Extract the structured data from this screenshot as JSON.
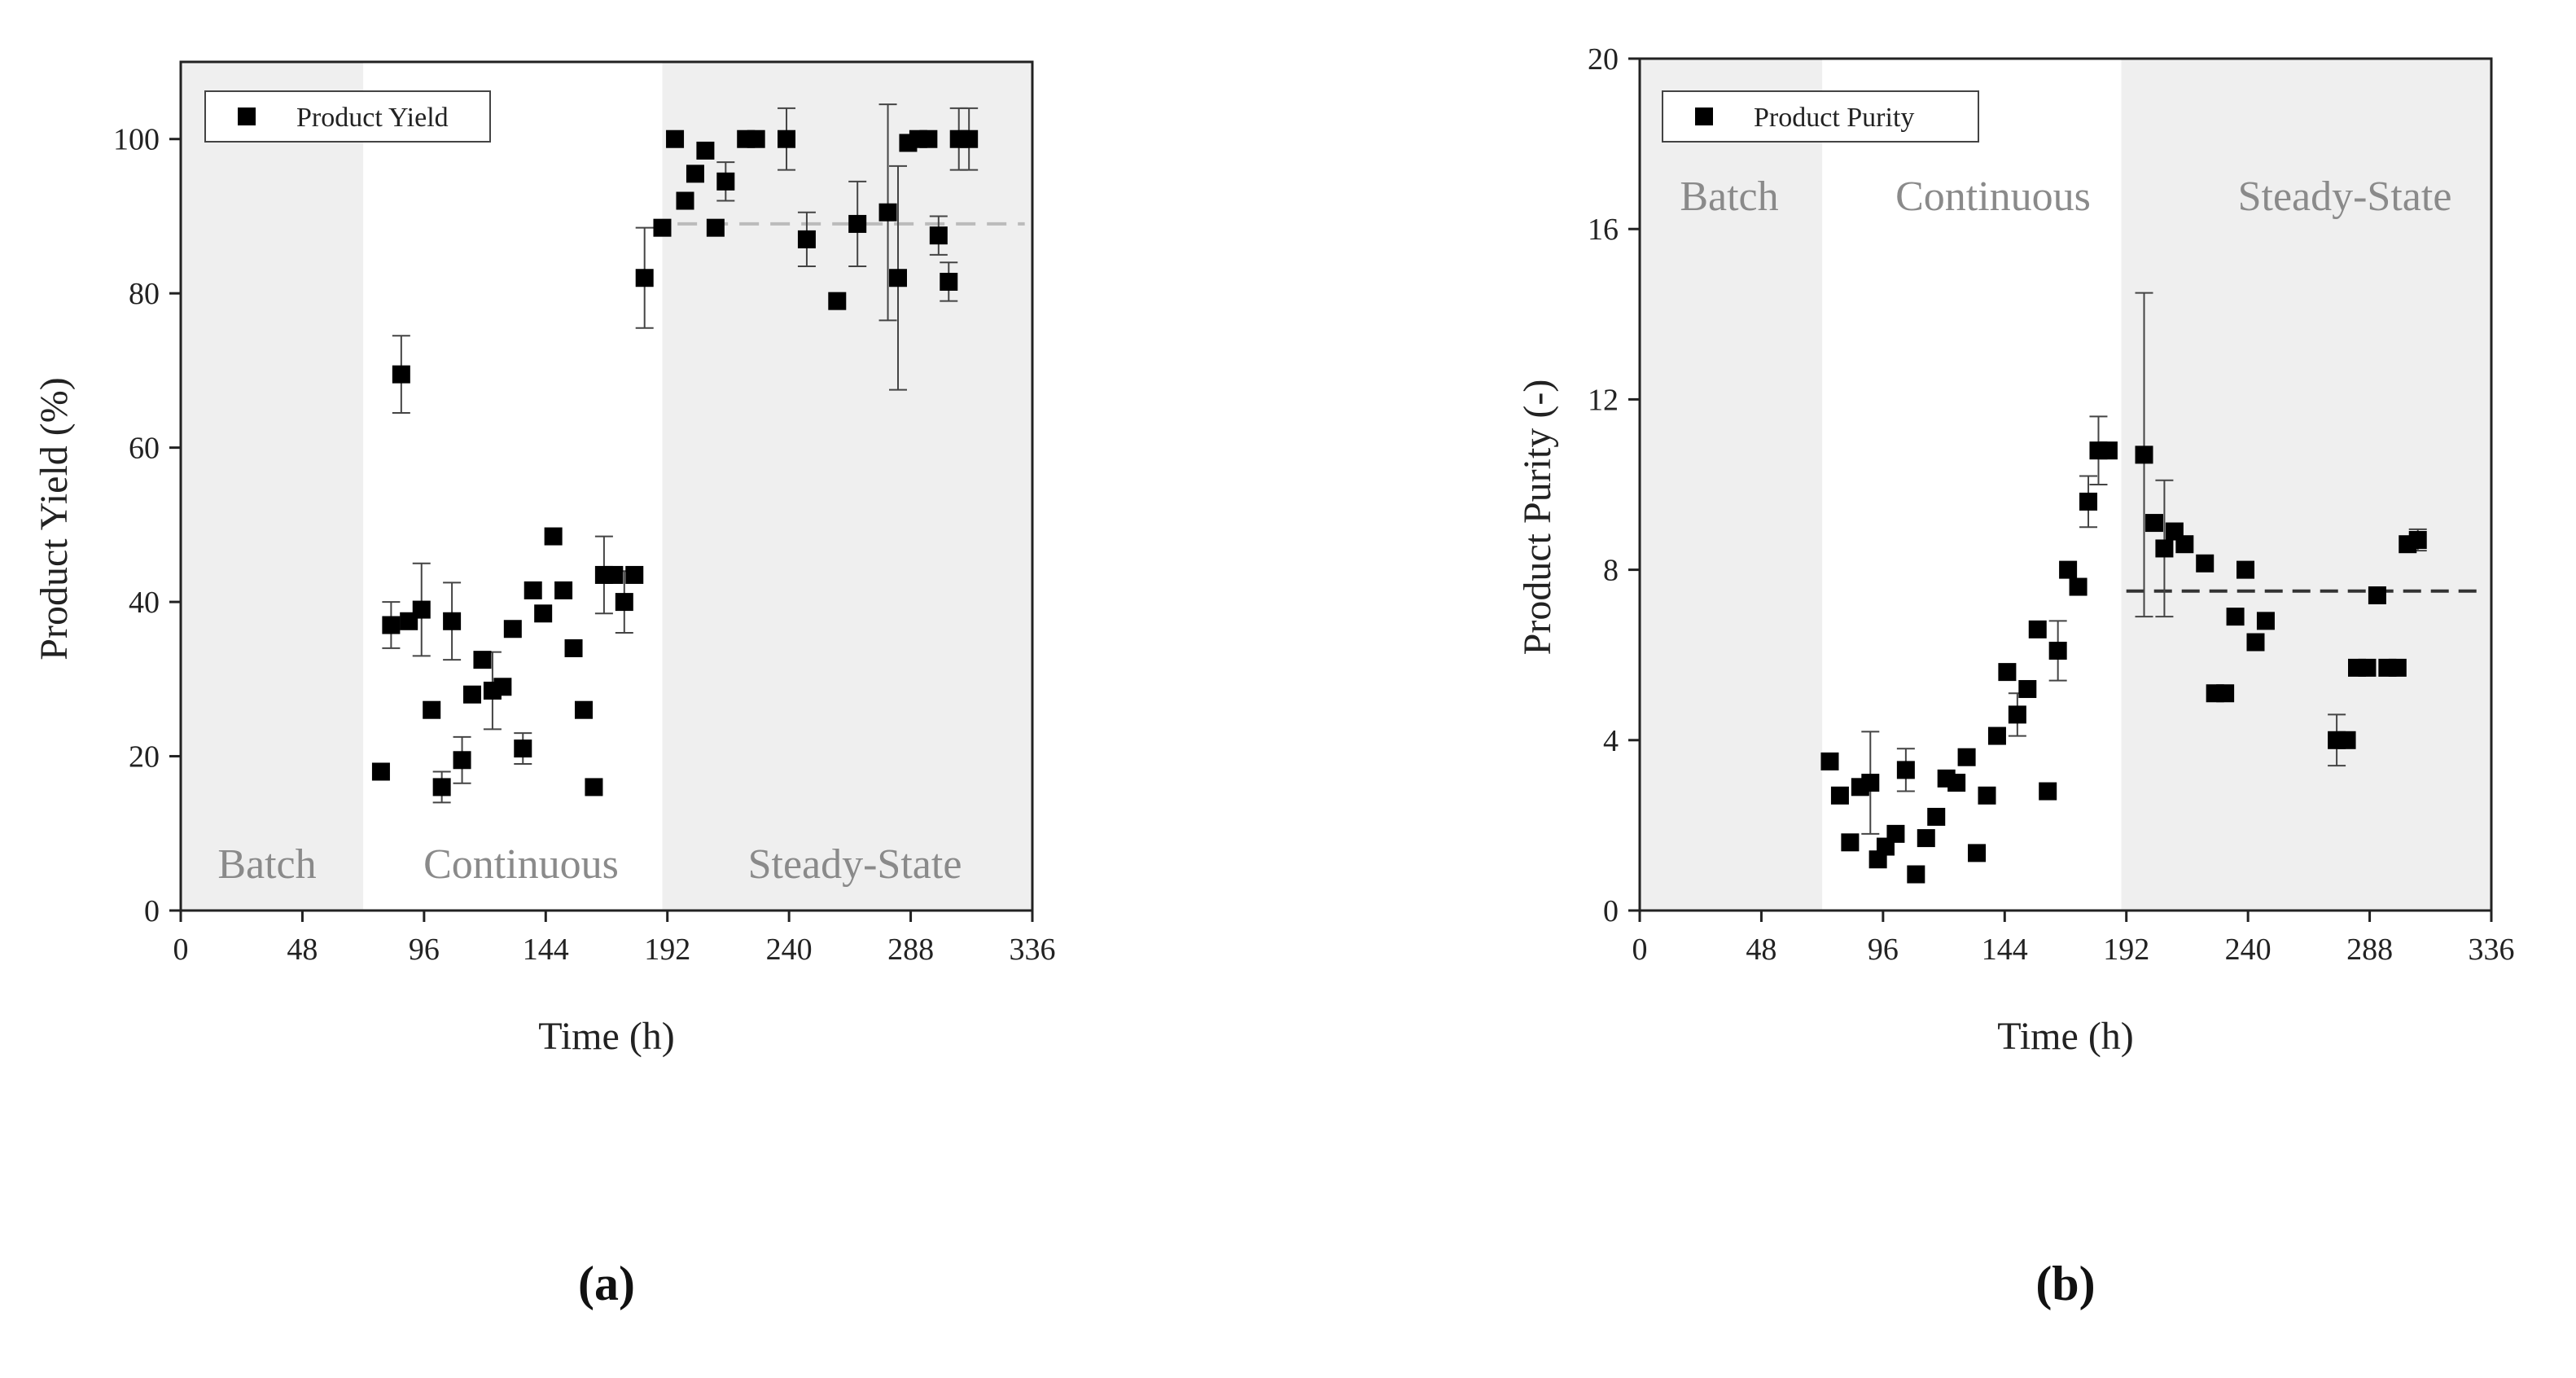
{
  "chart_data": [
    {
      "type": "scatter",
      "panel_label": "(a)",
      "xlabel": "Time (h)",
      "ylabel": "Product Yield (%)",
      "xlim": [
        0,
        336
      ],
      "ylim": [
        0,
        110
      ],
      "xticks": [
        0,
        48,
        96,
        144,
        192,
        240,
        288,
        336
      ],
      "yticks": [
        0,
        20,
        40,
        60,
        80,
        100
      ],
      "legend": {
        "label": "Product Yield",
        "placement": "top-left"
      },
      "phases": [
        {
          "label": "Batch",
          "x_start": 0,
          "x_end": 72,
          "shaded": true
        },
        {
          "label": "Continuous",
          "x_start": 72,
          "x_end": 190,
          "shaded": false
        },
        {
          "label": "Steady-State",
          "x_start": 190,
          "x_end": 336,
          "shaded": true
        }
      ],
      "reference_line": {
        "y": 89,
        "x_start": 196,
        "x_end": 333,
        "color": "#bbbbbb"
      },
      "series": [
        {
          "name": "Product Yield",
          "points": [
            {
              "x": 79,
              "y": 18
            },
            {
              "x": 83,
              "y": 37,
              "err": 3
            },
            {
              "x": 87,
              "y": 69.5,
              "err": 5
            },
            {
              "x": 90,
              "y": 37.5
            },
            {
              "x": 95,
              "y": 39,
              "err": 6
            },
            {
              "x": 99,
              "y": 26
            },
            {
              "x": 103,
              "y": 16,
              "err": 2
            },
            {
              "x": 107,
              "y": 37.5,
              "err": 5
            },
            {
              "x": 111,
              "y": 19.5,
              "err": 3
            },
            {
              "x": 115,
              "y": 28
            },
            {
              "x": 119,
              "y": 32.5
            },
            {
              "x": 123,
              "y": 28.5,
              "err": 5
            },
            {
              "x": 127,
              "y": 29
            },
            {
              "x": 131,
              "y": 36.5
            },
            {
              "x": 135,
              "y": 21,
              "err": 2
            },
            {
              "x": 139,
              "y": 41.5
            },
            {
              "x": 143,
              "y": 38.5
            },
            {
              "x": 147,
              "y": 48.5
            },
            {
              "x": 151,
              "y": 41.5
            },
            {
              "x": 155,
              "y": 34
            },
            {
              "x": 159,
              "y": 26
            },
            {
              "x": 163,
              "y": 16
            },
            {
              "x": 167,
              "y": 43.5,
              "err": 5
            },
            {
              "x": 171,
              "y": 43.5
            },
            {
              "x": 175,
              "y": 40,
              "err": 4
            },
            {
              "x": 179,
              "y": 43.5
            },
            {
              "x": 183,
              "y": 82,
              "err": 6.5
            },
            {
              "x": 190,
              "y": 88.5
            },
            {
              "x": 195,
              "y": 100
            },
            {
              "x": 199,
              "y": 92
            },
            {
              "x": 203,
              "y": 95.5
            },
            {
              "x": 207,
              "y": 98.5
            },
            {
              "x": 211,
              "y": 88.5
            },
            {
              "x": 215,
              "y": 94.5,
              "err": 2.5
            },
            {
              "x": 223,
              "y": 100
            },
            {
              "x": 227,
              "y": 100
            },
            {
              "x": 239,
              "y": 100,
              "err": 4
            },
            {
              "x": 247,
              "y": 87,
              "err": 3.5
            },
            {
              "x": 259,
              "y": 79
            },
            {
              "x": 267,
              "y": 89,
              "err": 5.5
            },
            {
              "x": 279,
              "y": 90.5,
              "err": 14
            },
            {
              "x": 283,
              "y": 82,
              "err": 14.5
            },
            {
              "x": 287,
              "y": 99.5
            },
            {
              "x": 291,
              "y": 100
            },
            {
              "x": 295,
              "y": 100
            },
            {
              "x": 299,
              "y": 87.5,
              "err": 2.5
            },
            {
              "x": 303,
              "y": 81.5,
              "err": 2.5
            },
            {
              "x": 307,
              "y": 100,
              "err": 4
            },
            {
              "x": 311,
              "y": 100,
              "err": 4
            }
          ]
        }
      ]
    },
    {
      "type": "scatter",
      "panel_label": "(b)",
      "xlabel": "Time (h)",
      "ylabel": "Product Purity (-)",
      "xlim": [
        0,
        336
      ],
      "ylim": [
        0,
        20
      ],
      "xticks": [
        0,
        48,
        96,
        144,
        192,
        240,
        288,
        336
      ],
      "yticks": [
        0,
        4,
        8,
        12,
        16,
        20
      ],
      "legend": {
        "label": "Product Purity",
        "placement": "top-left"
      },
      "phases": [
        {
          "label": "Batch",
          "x_start": 0,
          "x_end": 72,
          "shaded": true
        },
        {
          "label": "Continuous",
          "x_start": 72,
          "x_end": 190,
          "shaded": false
        },
        {
          "label": "Steady-State",
          "x_start": 190,
          "x_end": 336,
          "shaded": true
        }
      ],
      "reference_line": {
        "y": 7.5,
        "x_start": 192,
        "x_end": 333,
        "color": "#333333"
      },
      "series": [
        {
          "name": "Product Purity",
          "points": [
            {
              "x": 75,
              "y": 3.5
            },
            {
              "x": 79,
              "y": 2.7
            },
            {
              "x": 83,
              "y": 1.6
            },
            {
              "x": 87,
              "y": 2.9
            },
            {
              "x": 91,
              "y": 3.0,
              "err": 1.2
            },
            {
              "x": 94,
              "y": 1.2
            },
            {
              "x": 97,
              "y": 1.5
            },
            {
              "x": 101,
              "y": 1.8
            },
            {
              "x": 105,
              "y": 3.3,
              "err": 0.5
            },
            {
              "x": 109,
              "y": 0.85
            },
            {
              "x": 113,
              "y": 1.7
            },
            {
              "x": 117,
              "y": 2.2
            },
            {
              "x": 121,
              "y": 3.1
            },
            {
              "x": 125,
              "y": 3.0
            },
            {
              "x": 129,
              "y": 3.6
            },
            {
              "x": 133,
              "y": 1.35
            },
            {
              "x": 137,
              "y": 2.7
            },
            {
              "x": 141,
              "y": 4.1
            },
            {
              "x": 145,
              "y": 5.6
            },
            {
              "x": 149,
              "y": 4.6,
              "err": 0.5
            },
            {
              "x": 153,
              "y": 5.2
            },
            {
              "x": 157,
              "y": 6.6
            },
            {
              "x": 161,
              "y": 2.8
            },
            {
              "x": 165,
              "y": 6.1,
              "err": 0.7
            },
            {
              "x": 169,
              "y": 8.0
            },
            {
              "x": 173,
              "y": 7.6
            },
            {
              "x": 177,
              "y": 9.6,
              "err": 0.6
            },
            {
              "x": 181,
              "y": 10.8,
              "err": 0.8
            },
            {
              "x": 185,
              "y": 10.8
            },
            {
              "x": 199,
              "y": 10.7,
              "err": 3.8
            },
            {
              "x": 203,
              "y": 9.1
            },
            {
              "x": 207,
              "y": 8.5,
              "err": 1.6
            },
            {
              "x": 211,
              "y": 8.9
            },
            {
              "x": 215,
              "y": 8.6
            },
            {
              "x": 223,
              "y": 8.15
            },
            {
              "x": 227,
              "y": 5.1
            },
            {
              "x": 231,
              "y": 5.1
            },
            {
              "x": 235,
              "y": 6.9
            },
            {
              "x": 239,
              "y": 8.0
            },
            {
              "x": 243,
              "y": 6.3
            },
            {
              "x": 247,
              "y": 6.8
            },
            {
              "x": 275,
              "y": 4.0,
              "err": 0.6
            },
            {
              "x": 279,
              "y": 4.0
            },
            {
              "x": 283,
              "y": 5.7
            },
            {
              "x": 287,
              "y": 5.7
            },
            {
              "x": 291,
              "y": 7.4
            },
            {
              "x": 295,
              "y": 5.7
            },
            {
              "x": 299,
              "y": 5.7
            },
            {
              "x": 303,
              "y": 8.6
            },
            {
              "x": 307,
              "y": 8.7,
              "err": 0.25
            }
          ]
        }
      ]
    }
  ]
}
